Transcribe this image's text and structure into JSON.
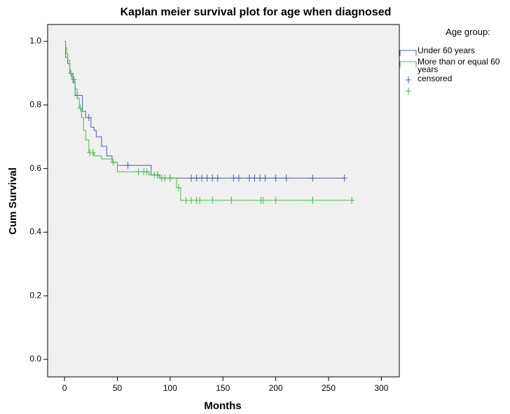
{
  "chart_data": {
    "type": "km",
    "title": "Kaplan meier survival plot for age when diagnosed",
    "x_label": "Months",
    "y_label": "Cum Survival",
    "legend_title": "Age group:",
    "censored_label": "censored",
    "xlim": [
      -16,
      317
    ],
    "ylim": [
      -0.055,
      1.053
    ],
    "xticks": [
      0,
      50,
      100,
      150,
      200,
      250,
      300
    ],
    "yticks": [
      {
        "value": 0,
        "label": "0.0"
      },
      {
        "value": 0.2,
        "label": "0.2"
      },
      {
        "value": 0.4,
        "label": "0.4"
      },
      {
        "value": 0.6,
        "label": "0.6"
      },
      {
        "value": 0.8,
        "label": "0.8"
      },
      {
        "value": 1,
        "label": "1.0"
      }
    ],
    "series": [
      {
        "name": "Under 60 years",
        "color": "#4a5cb0",
        "x": [
          0,
          1,
          3,
          5,
          8,
          10,
          17,
          20,
          25,
          28,
          30,
          35,
          40,
          45,
          50,
          82,
          90,
          265
        ],
        "values": [
          1,
          0.95,
          0.93,
          0.9,
          0.87,
          0.83,
          0.78,
          0.76,
          0.73,
          0.72,
          0.7,
          0.67,
          0.64,
          0.62,
          0.61,
          0.58,
          0.57,
          0.57
        ],
        "censored": {
          "x": [
            6,
            12,
            23,
            60,
            88,
            100,
            120,
            125,
            130,
            135,
            140,
            145,
            160,
            165,
            175,
            180,
            185,
            190,
            200,
            210,
            235,
            265
          ],
          "values": [
            0.9,
            0.83,
            0.76,
            0.61,
            0.58,
            0.57,
            0.57,
            0.57,
            0.57,
            0.57,
            0.57,
            0.57,
            0.57,
            0.57,
            0.57,
            0.57,
            0.57,
            0.57,
            0.57,
            0.57,
            0.57,
            0.57
          ]
        }
      },
      {
        "name": "More than or equal 60 years",
        "color": "#3fbf3f",
        "x": [
          0,
          1,
          2,
          3,
          5,
          7,
          10,
          12,
          14,
          16,
          18,
          20,
          23,
          28,
          35,
          45,
          50,
          80,
          90,
          106,
          110,
          272
        ],
        "values": [
          1,
          0.98,
          0.96,
          0.94,
          0.9,
          0.88,
          0.85,
          0.82,
          0.79,
          0.76,
          0.72,
          0.69,
          0.65,
          0.64,
          0.63,
          0.62,
          0.59,
          0.58,
          0.57,
          0.54,
          0.5,
          0.5
        ],
        "censored": {
          "x": [
            6,
            9,
            15,
            24,
            27,
            46,
            70,
            75,
            78,
            85,
            88,
            92,
            95,
            100,
            108,
            115,
            120,
            125,
            128,
            140,
            158,
            186,
            188,
            200,
            235,
            272
          ],
          "values": [
            0.9,
            0.88,
            0.79,
            0.65,
            0.65,
            0.62,
            0.59,
            0.59,
            0.59,
            0.58,
            0.58,
            0.57,
            0.57,
            0.57,
            0.54,
            0.5,
            0.5,
            0.5,
            0.5,
            0.5,
            0.5,
            0.5,
            0.5,
            0.5,
            0.5,
            0.5
          ]
        }
      }
    ]
  }
}
